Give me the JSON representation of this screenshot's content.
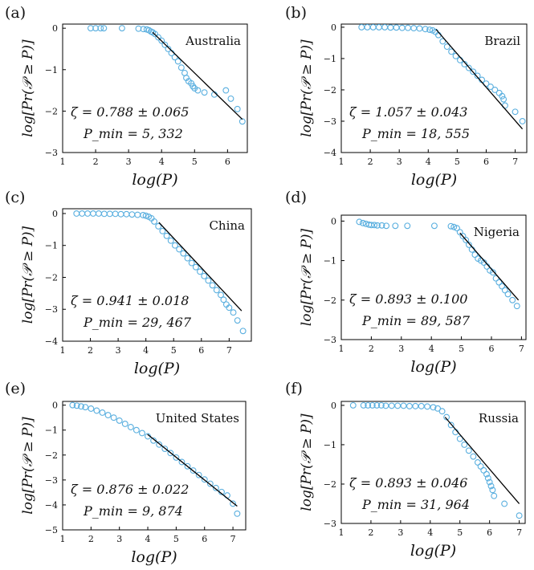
{
  "colors": {
    "marker": "#5aafdf",
    "fit": "#000000",
    "axis": "#000000"
  },
  "x_axis_label": "log(P)",
  "y_axis_label": "log[Pr(𝒫 ≥ P)]",
  "chart_data": [
    {
      "type": "scatter",
      "panel_label": "(a)",
      "title": "Australia",
      "zeta_text": "ζ = 0.788 ± 0.065",
      "pmin_text": "P_min = 5, 332",
      "xlim": [
        1,
        6.6
      ],
      "ylim": [
        -3,
        0.1
      ],
      "xticks": [
        1,
        2,
        3,
        4,
        5,
        6
      ],
      "yticks": [
        0,
        -1,
        -2,
        -3
      ],
      "x_tick_labels": [
        "1",
        "2",
        "3",
        "4",
        "5",
        "6"
      ],
      "y_tick_labels": [
        "0",
        "−1",
        "−2",
        "−3"
      ],
      "fit": {
        "x": [
          3.73,
          6.45
        ],
        "y": [
          -0.1,
          -2.2
        ]
      },
      "points": {
        "x": [
          1.85,
          2.0,
          2.15,
          2.25,
          2.8,
          3.3,
          3.45,
          3.55,
          3.62,
          3.68,
          3.73,
          3.8,
          3.9,
          4.0,
          4.1,
          4.2,
          4.3,
          4.4,
          4.5,
          4.6,
          4.7,
          4.75,
          4.82,
          4.9,
          4.95,
          5.0,
          5.1,
          5.3,
          5.6,
          5.95,
          6.1,
          6.3,
          6.45
        ],
        "y": [
          0,
          0,
          0,
          0,
          0,
          -0.01,
          -0.02,
          -0.03,
          -0.05,
          -0.08,
          -0.1,
          -0.14,
          -0.22,
          -0.3,
          -0.4,
          -0.5,
          -0.6,
          -0.7,
          -0.8,
          -0.95,
          -1.08,
          -1.2,
          -1.28,
          -1.33,
          -1.4,
          -1.45,
          -1.5,
          -1.55,
          -1.6,
          -1.5,
          -1.7,
          -1.95,
          -2.25
        ]
      }
    },
    {
      "type": "scatter",
      "panel_label": "(b)",
      "title": "Brazil",
      "zeta_text": "ζ = 1.057 ± 0.043",
      "pmin_text": "P_min = 18, 555",
      "xlim": [
        1,
        7.4
      ],
      "ylim": [
        -4,
        0.1
      ],
      "xticks": [
        1,
        2,
        3,
        4,
        5,
        6,
        7
      ],
      "yticks": [
        0,
        -1,
        -2,
        -3,
        -4
      ],
      "x_tick_labels": [
        "1",
        "2",
        "3",
        "4",
        "5",
        "6",
        "7"
      ],
      "y_tick_labels": [
        "0",
        "−1",
        "−2",
        "−3",
        "−4"
      ],
      "fit": {
        "x": [
          4.27,
          7.25
        ],
        "y": [
          -0.07,
          -3.25
        ]
      },
      "points": {
        "x": [
          1.7,
          1.9,
          2.1,
          2.3,
          2.5,
          2.7,
          2.9,
          3.1,
          3.3,
          3.5,
          3.7,
          3.9,
          4.05,
          4.15,
          4.25,
          4.35,
          4.5,
          4.65,
          4.8,
          4.95,
          5.1,
          5.25,
          5.4,
          5.55,
          5.7,
          5.85,
          6.0,
          6.15,
          6.3,
          6.45,
          6.55,
          6.6,
          6.65,
          7.0,
          7.25
        ],
        "y": [
          0,
          0,
          0,
          0,
          0,
          -0.01,
          -0.01,
          -0.02,
          -0.02,
          -0.03,
          -0.04,
          -0.06,
          -0.08,
          -0.1,
          -0.15,
          -0.25,
          -0.45,
          -0.62,
          -0.78,
          -0.92,
          -1.05,
          -1.18,
          -1.3,
          -1.42,
          -1.55,
          -1.68,
          -1.8,
          -1.9,
          -2.0,
          -2.1,
          -2.2,
          -2.3,
          -2.5,
          -2.7,
          -3.0
        ]
      }
    },
    {
      "type": "scatter",
      "panel_label": "(c)",
      "title": "China",
      "zeta_text": "ζ = 0.941 ± 0.018",
      "pmin_text": "P_min = 29, 467",
      "xlim": [
        1,
        7.8
      ],
      "ylim": [
        -4,
        0.15
      ],
      "xticks": [
        1,
        2,
        3,
        4,
        5,
        6,
        7
      ],
      "yticks": [
        0,
        -1,
        -2,
        -3,
        -4
      ],
      "x_tick_labels": [
        "1",
        "2",
        "3",
        "4",
        "5",
        "6",
        "7"
      ],
      "y_tick_labels": [
        "0",
        "−1",
        "−2",
        "−3",
        "−4"
      ],
      "fit": {
        "x": [
          4.47,
          7.45
        ],
        "y": [
          -0.28,
          -3.05
        ]
      },
      "points": {
        "x": [
          1.5,
          1.7,
          1.9,
          2.1,
          2.3,
          2.5,
          2.7,
          2.9,
          3.1,
          3.3,
          3.5,
          3.7,
          3.9,
          4.0,
          4.1,
          4.2,
          4.3,
          4.45,
          4.6,
          4.75,
          4.9,
          5.05,
          5.2,
          5.35,
          5.5,
          5.65,
          5.8,
          5.95,
          6.1,
          6.25,
          6.4,
          6.55,
          6.7,
          6.8,
          6.9,
          7.0,
          7.15,
          7.3,
          7.5
        ],
        "y": [
          0,
          0,
          0,
          0,
          0,
          -0.01,
          -0.01,
          -0.01,
          -0.02,
          -0.02,
          -0.03,
          -0.04,
          -0.05,
          -0.07,
          -0.1,
          -0.15,
          -0.25,
          -0.4,
          -0.55,
          -0.7,
          -0.85,
          -1.0,
          -1.12,
          -1.25,
          -1.4,
          -1.55,
          -1.68,
          -1.82,
          -1.96,
          -2.1,
          -2.25,
          -2.4,
          -2.55,
          -2.7,
          -2.85,
          -2.95,
          -3.1,
          -3.35,
          -3.68
        ]
      }
    },
    {
      "type": "scatter",
      "panel_label": "(d)",
      "title": "Nigeria",
      "zeta_text": "ζ = 0.893 ± 0.100",
      "pmin_text": "P_min = 89, 587",
      "xlim": [
        1,
        7.15
      ],
      "ylim": [
        -3,
        0.15
      ],
      "xticks": [
        1,
        2,
        3,
        4,
        5,
        6,
        7
      ],
      "yticks": [
        0,
        -1,
        -2,
        -3
      ],
      "x_tick_labels": [
        "1",
        "2",
        "3",
        "4",
        "5",
        "6",
        "7"
      ],
      "y_tick_labels": [
        "0",
        "−1",
        "−2",
        "−3"
      ],
      "fit": {
        "x": [
          4.95,
          6.9
        ],
        "y": [
          -0.3,
          -2.0
        ]
      },
      "points": {
        "x": [
          1.6,
          1.72,
          1.82,
          1.92,
          2.0,
          2.1,
          2.2,
          2.35,
          2.5,
          2.8,
          3.2,
          4.1,
          4.65,
          4.75,
          4.85,
          4.95,
          5.05,
          5.15,
          5.25,
          5.35,
          5.45,
          5.55,
          5.65,
          5.75,
          5.85,
          5.95,
          6.05,
          6.15,
          6.25,
          6.35,
          6.45,
          6.55,
          6.7,
          6.85
        ],
        "y": [
          -0.02,
          -0.05,
          -0.07,
          -0.09,
          -0.1,
          -0.1,
          -0.11,
          -0.11,
          -0.12,
          -0.12,
          -0.12,
          -0.12,
          -0.13,
          -0.15,
          -0.18,
          -0.28,
          -0.38,
          -0.48,
          -0.6,
          -0.72,
          -0.85,
          -0.95,
          -1.0,
          -1.05,
          -1.15,
          -1.25,
          -1.3,
          -1.45,
          -1.55,
          -1.65,
          -1.75,
          -1.85,
          -2.0,
          -2.15
        ]
      }
    },
    {
      "type": "scatter",
      "panel_label": "(e)",
      "title": "United States",
      "zeta_text": "ζ = 0.876 ± 0.022",
      "pmin_text": "P_min = 9, 874",
      "xlim": [
        1,
        7.45
      ],
      "ylim": [
        -5,
        0.15
      ],
      "xticks": [
        1,
        2,
        3,
        4,
        5,
        6,
        7
      ],
      "yticks": [
        0,
        -1,
        -2,
        -3,
        -4,
        -5
      ],
      "x_tick_labels": [
        "1",
        "2",
        "3",
        "4",
        "5",
        "6",
        "7"
      ],
      "y_tick_labels": [
        "0",
        "−1",
        "−2",
        "−3",
        "−4",
        "−5"
      ],
      "fit": {
        "x": [
          3.99,
          7.15
        ],
        "y": [
          -1.17,
          -4.05
        ]
      },
      "points": {
        "x": [
          1.35,
          1.5,
          1.65,
          1.8,
          2.0,
          2.2,
          2.4,
          2.6,
          2.8,
          3.0,
          3.2,
          3.4,
          3.6,
          3.8,
          4.0,
          4.2,
          4.4,
          4.6,
          4.8,
          5.0,
          5.2,
          5.4,
          5.6,
          5.8,
          6.0,
          6.2,
          6.4,
          6.6,
          6.8,
          7.0,
          7.15
        ],
        "y": [
          0,
          -0.02,
          -0.05,
          -0.08,
          -0.14,
          -0.22,
          -0.3,
          -0.4,
          -0.5,
          -0.62,
          -0.75,
          -0.88,
          -1.0,
          -1.12,
          -1.25,
          -1.42,
          -1.58,
          -1.75,
          -1.92,
          -2.1,
          -2.28,
          -2.45,
          -2.62,
          -2.8,
          -2.98,
          -3.15,
          -3.32,
          -3.48,
          -3.62,
          -3.95,
          -4.35
        ]
      }
    },
    {
      "type": "scatter",
      "panel_label": "(f)",
      "title": "Russia",
      "zeta_text": "ζ = 0.893 ± 0.046",
      "pmin_text": "P_min = 31, 964",
      "xlim": [
        1,
        7.2
      ],
      "ylim": [
        -3,
        0.1
      ],
      "xticks": [
        1,
        2,
        3,
        4,
        5,
        6,
        7
      ],
      "yticks": [
        0,
        -1,
        -2,
        -3
      ],
      "x_tick_labels": [
        "1",
        "2",
        "3",
        "4",
        "5",
        "6",
        "7"
      ],
      "y_tick_labels": [
        "0",
        "−1",
        "−2",
        "−3"
      ],
      "fit": {
        "x": [
          4.5,
          7.0
        ],
        "y": [
          -0.3,
          -2.5
        ]
      },
      "points": {
        "x": [
          1.4,
          1.75,
          1.9,
          2.05,
          2.2,
          2.35,
          2.5,
          2.7,
          2.9,
          3.1,
          3.3,
          3.5,
          3.7,
          3.9,
          4.1,
          4.25,
          4.4,
          4.55,
          4.7,
          4.85,
          5.0,
          5.15,
          5.3,
          5.45,
          5.6,
          5.7,
          5.8,
          5.9,
          5.95,
          6.0,
          6.05,
          6.1,
          6.15,
          6.5,
          7.0
        ],
        "y": [
          0,
          0,
          0,
          0,
          0,
          0,
          -0.01,
          -0.01,
          -0.01,
          -0.01,
          -0.02,
          -0.02,
          -0.02,
          -0.03,
          -0.05,
          -0.08,
          -0.15,
          -0.3,
          -0.5,
          -0.68,
          -0.85,
          -1.0,
          -1.15,
          -1.3,
          -1.45,
          -1.55,
          -1.65,
          -1.75,
          -1.85,
          -1.95,
          -2.05,
          -2.15,
          -2.3,
          -2.5,
          -2.8
        ]
      }
    }
  ]
}
